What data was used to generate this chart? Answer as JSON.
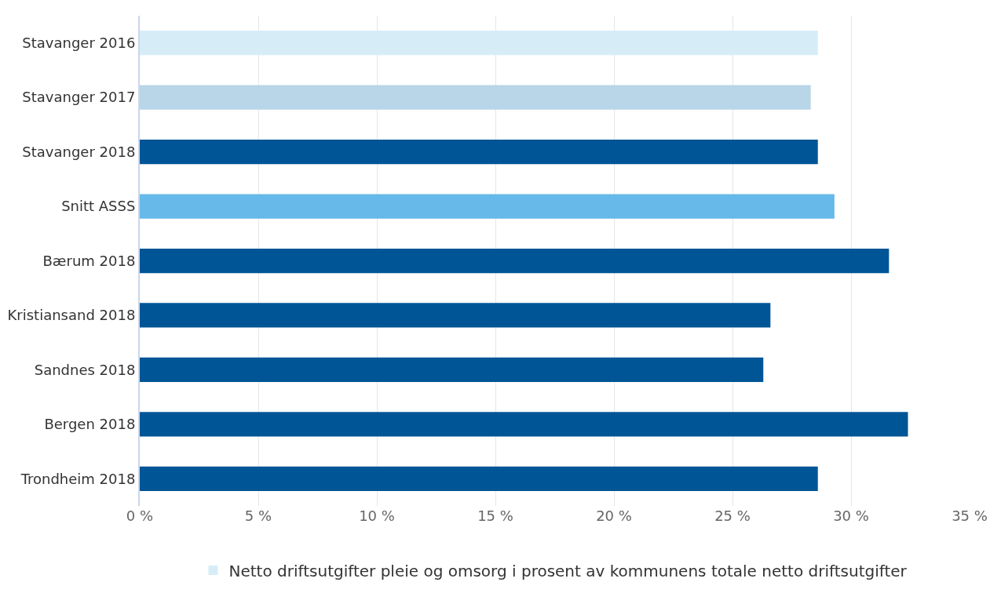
{
  "chart_data": {
    "type": "bar",
    "orientation": "horizontal",
    "categories": [
      "Stavanger 2016",
      "Stavanger 2017",
      "Stavanger 2018",
      "Snitt ASSS",
      "Bærum 2018",
      "Kristiansand 2018",
      "Sandnes 2018",
      "Bergen 2018",
      "Trondheim 2018"
    ],
    "series": [
      {
        "name": "Netto driftsutgifter pleie og omsorg i prosent av kommunens totale netto driftsutgifter",
        "colors": [
          "#d6edf8",
          "#b9d5e8",
          "#005596",
          "#66b9e8",
          "#005596",
          "#005596",
          "#005596",
          "#005596",
          "#005596"
        ],
        "values": [
          28.6,
          28.3,
          28.6,
          29.3,
          31.6,
          26.6,
          26.3,
          32.4,
          28.6
        ]
      }
    ],
    "xlim": [
      0,
      35
    ],
    "xticks": [
      {
        "value": 0,
        "label": "0 %"
      },
      {
        "value": 5,
        "label": "5 %"
      },
      {
        "value": 10,
        "label": "10 %"
      },
      {
        "value": 15,
        "label": "15 %"
      },
      {
        "value": 20,
        "label": "20 %"
      },
      {
        "value": 25,
        "label": "25 %"
      },
      {
        "value": 30,
        "label": "30 %"
      },
      {
        "value": 35,
        "label": "35 %"
      }
    ],
    "grid": "x",
    "legend": "bottom"
  }
}
